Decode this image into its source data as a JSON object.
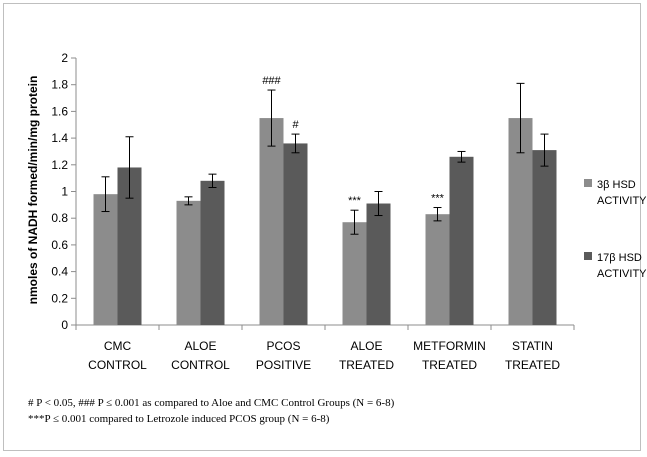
{
  "chart_data": {
    "type": "bar",
    "title": "",
    "xlabel": "",
    "ylabel": "nmoles of NADH formed/min/mg protein",
    "ylim": [
      0,
      2
    ],
    "yticks": [
      "0",
      "0.2",
      "0.4",
      "0.6",
      "0.8",
      "1",
      "1.2",
      "1.4",
      "1.6",
      "1.8",
      "2"
    ],
    "grid": false,
    "legend_position": "right",
    "categories": [
      [
        "CMC",
        "CONTROL"
      ],
      [
        "ALOE",
        "CONTROL"
      ],
      [
        "PCOS",
        "POSITIVE"
      ],
      [
        "ALOE",
        "TREATED"
      ],
      [
        "METFORMIN",
        "TREATED"
      ],
      [
        "STATIN",
        "TREATED"
      ]
    ],
    "series": [
      {
        "name": [
          "3β HSD",
          "ACTIVITY"
        ],
        "color": "#8c8c8c",
        "values": [
          0.98,
          0.93,
          1.55,
          0.77,
          0.83,
          1.55
        ],
        "errors": [
          0.13,
          0.03,
          0.21,
          0.09,
          0.05,
          0.26
        ],
        "annotations": [
          "",
          "",
          "###",
          "***",
          "***",
          ""
        ]
      },
      {
        "name": [
          "17β HSD",
          "ACTIVITY"
        ],
        "color": "#5a5a5a",
        "values": [
          1.18,
          1.08,
          1.36,
          0.91,
          1.26,
          1.31
        ],
        "errors": [
          0.23,
          0.05,
          0.07,
          0.09,
          0.04,
          0.12
        ],
        "annotations": [
          "",
          "",
          "#",
          "",
          "",
          ""
        ]
      }
    ]
  },
  "footnotes": [
    "# P < 0.05, ### P ≤ 0.001 as compared to Aloe and CMC Control Groups (N = 6-8)",
    "***P ≤ 0.001 compared to Letrozole induced PCOS group (N = 6-8)"
  ]
}
